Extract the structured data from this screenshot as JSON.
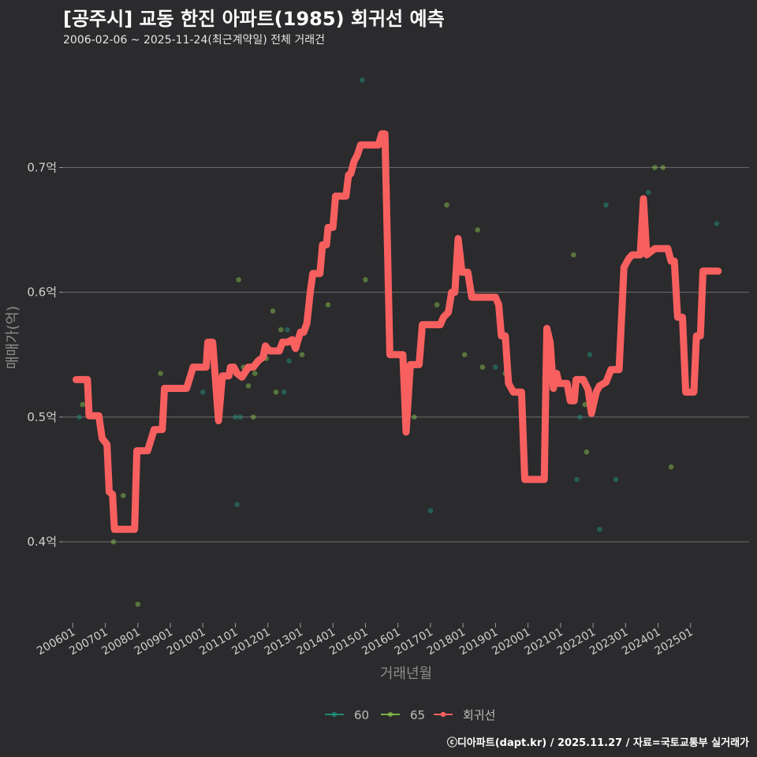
{
  "chart_data": {
    "type": "line",
    "title": "[공주시] 교동 한진 아파트(1985) 회귀선 예측",
    "subtitle": "2006-02-06 ~ 2025-11-24(최근계약일) 전체 거래건",
    "xlabel": "거래년월",
    "ylabel": "매매가(억)",
    "caption": "ⓒ디아파트(dapt.kr) / 2025.11.27 / 자료=국토교통부 실거래가",
    "xlim": [
      2005.7,
      2026.8
    ],
    "ylim": [
      0.335,
      0.79
    ],
    "x_ticks": [
      {
        "value": 2006.0,
        "label": "200601"
      },
      {
        "value": 2007.0,
        "label": "200701"
      },
      {
        "value": 2008.0,
        "label": "200801"
      },
      {
        "value": 2009.0,
        "label": "200901"
      },
      {
        "value": 2010.0,
        "label": "201001"
      },
      {
        "value": 2011.0,
        "label": "201101"
      },
      {
        "value": 2012.0,
        "label": "201201"
      },
      {
        "value": 2013.0,
        "label": "201301"
      },
      {
        "value": 2014.0,
        "label": "201401"
      },
      {
        "value": 2015.0,
        "label": "201501"
      },
      {
        "value": 2016.0,
        "label": "201601"
      },
      {
        "value": 2017.0,
        "label": "201701"
      },
      {
        "value": 2018.0,
        "label": "201801"
      },
      {
        "value": 2019.0,
        "label": "201901"
      },
      {
        "value": 2020.0,
        "label": "202001"
      },
      {
        "value": 2021.0,
        "label": "202101"
      },
      {
        "value": 2022.0,
        "label": "202201"
      },
      {
        "value": 2023.0,
        "label": "202301"
      },
      {
        "value": 2024.0,
        "label": "202401"
      },
      {
        "value": 2025.0,
        "label": "202501"
      }
    ],
    "y_ticks": [
      {
        "value": 0.4,
        "label": "0.4억"
      },
      {
        "value": 0.5,
        "label": "0.5억"
      },
      {
        "value": 0.6,
        "label": "0.6억"
      },
      {
        "value": 0.7,
        "label": "0.7억"
      }
    ],
    "legend": [
      {
        "name": "60",
        "color": "#1f9e89"
      },
      {
        "name": "65",
        "color": "#8fd14f"
      },
      {
        "name": "회귀선",
        "color": "#f8605f"
      }
    ],
    "series": [
      {
        "name": "60",
        "type": "scatter",
        "color": "#1f9e89",
        "points": [
          [
            2006.2,
            0.5
          ],
          [
            2010.0,
            0.52
          ],
          [
            2011.0,
            0.5
          ],
          [
            2011.15,
            0.5
          ],
          [
            2011.05,
            0.43
          ],
          [
            2012.5,
            0.52
          ],
          [
            2012.6,
            0.57
          ],
          [
            2012.65,
            0.545
          ],
          [
            2014.9,
            0.77
          ],
          [
            2017.0,
            0.425
          ],
          [
            2019.0,
            0.54
          ],
          [
            2021.5,
            0.45
          ],
          [
            2021.6,
            0.5
          ],
          [
            2021.9,
            0.55
          ],
          [
            2022.2,
            0.41
          ],
          [
            2022.4,
            0.67
          ],
          [
            2022.7,
            0.45
          ],
          [
            2023.7,
            0.68
          ],
          [
            2025.8,
            0.655
          ]
        ]
      },
      {
        "name": "65",
        "type": "scatter",
        "color": "#8fd14f",
        "points": [
          [
            2006.3,
            0.51
          ],
          [
            2007.25,
            0.4
          ],
          [
            2007.55,
            0.437
          ],
          [
            2008.0,
            0.35
          ],
          [
            2008.7,
            0.535
          ],
          [
            2011.1,
            0.61
          ],
          [
            2011.25,
            0.54
          ],
          [
            2011.4,
            0.525
          ],
          [
            2011.6,
            0.535
          ],
          [
            2011.55,
            0.5
          ],
          [
            2011.95,
            0.547
          ],
          [
            2012.15,
            0.585
          ],
          [
            2012.25,
            0.52
          ],
          [
            2012.4,
            0.57
          ],
          [
            2013.05,
            0.55
          ],
          [
            2013.85,
            0.59
          ],
          [
            2015.0,
            0.61
          ],
          [
            2016.5,
            0.5
          ],
          [
            2017.2,
            0.59
          ],
          [
            2017.5,
            0.67
          ],
          [
            2018.05,
            0.55
          ],
          [
            2018.45,
            0.65
          ],
          [
            2018.6,
            0.54
          ],
          [
            2019.3,
            0.535
          ],
          [
            2021.4,
            0.63
          ],
          [
            2021.75,
            0.51
          ],
          [
            2021.8,
            0.472
          ],
          [
            2023.9,
            0.7
          ],
          [
            2024.15,
            0.7
          ],
          [
            2024.4,
            0.46
          ]
        ]
      },
      {
        "name": "회귀선",
        "type": "line",
        "color": "#f8605f",
        "points": [
          [
            2006.1,
            0.53
          ],
          [
            2006.45,
            0.53
          ],
          [
            2006.5,
            0.501
          ],
          [
            2006.8,
            0.501
          ],
          [
            2006.9,
            0.483
          ],
          [
            2007.05,
            0.478
          ],
          [
            2007.12,
            0.44
          ],
          [
            2007.22,
            0.438
          ],
          [
            2007.28,
            0.41
          ],
          [
            2007.75,
            0.41
          ],
          [
            2007.9,
            0.41
          ],
          [
            2007.97,
            0.473
          ],
          [
            2008.3,
            0.473
          ],
          [
            2008.5,
            0.49
          ],
          [
            2008.75,
            0.49
          ],
          [
            2008.82,
            0.523
          ],
          [
            2009.4,
            0.523
          ],
          [
            2009.5,
            0.523
          ],
          [
            2009.7,
            0.54
          ],
          [
            2010.1,
            0.54
          ],
          [
            2010.15,
            0.56
          ],
          [
            2010.3,
            0.56
          ],
          [
            2010.48,
            0.497
          ],
          [
            2010.6,
            0.533
          ],
          [
            2010.8,
            0.533
          ],
          [
            2010.85,
            0.54
          ],
          [
            2010.95,
            0.54
          ],
          [
            2011.05,
            0.535
          ],
          [
            2011.2,
            0.532
          ],
          [
            2011.4,
            0.54
          ],
          [
            2011.55,
            0.54
          ],
          [
            2011.7,
            0.545
          ],
          [
            2011.85,
            0.548
          ],
          [
            2011.92,
            0.557
          ],
          [
            2012.05,
            0.553
          ],
          [
            2012.35,
            0.553
          ],
          [
            2012.45,
            0.56
          ],
          [
            2012.6,
            0.56
          ],
          [
            2012.75,
            0.562
          ],
          [
            2012.85,
            0.555
          ],
          [
            2013.0,
            0.568
          ],
          [
            2013.1,
            0.568
          ],
          [
            2013.2,
            0.575
          ],
          [
            2013.3,
            0.6
          ],
          [
            2013.38,
            0.615
          ],
          [
            2013.6,
            0.615
          ],
          [
            2013.68,
            0.638
          ],
          [
            2013.8,
            0.638
          ],
          [
            2013.85,
            0.652
          ],
          [
            2014.0,
            0.652
          ],
          [
            2014.08,
            0.677
          ],
          [
            2014.4,
            0.677
          ],
          [
            2014.48,
            0.694
          ],
          [
            2014.55,
            0.695
          ],
          [
            2014.65,
            0.705
          ],
          [
            2014.75,
            0.71
          ],
          [
            2014.85,
            0.718
          ],
          [
            2015.4,
            0.718
          ],
          [
            2015.5,
            0.727
          ],
          [
            2015.6,
            0.727
          ],
          [
            2015.75,
            0.55
          ],
          [
            2016.15,
            0.55
          ],
          [
            2016.25,
            0.488
          ],
          [
            2016.38,
            0.542
          ],
          [
            2016.65,
            0.542
          ],
          [
            2016.75,
            0.574
          ],
          [
            2017.3,
            0.574
          ],
          [
            2017.4,
            0.58
          ],
          [
            2017.55,
            0.584
          ],
          [
            2017.65,
            0.6
          ],
          [
            2017.75,
            0.6
          ],
          [
            2017.85,
            0.643
          ],
          [
            2017.97,
            0.616
          ],
          [
            2018.15,
            0.616
          ],
          [
            2018.27,
            0.596
          ],
          [
            2018.55,
            0.596
          ],
          [
            2019.0,
            0.596
          ],
          [
            2019.1,
            0.59
          ],
          [
            2019.18,
            0.565
          ],
          [
            2019.3,
            0.565
          ],
          [
            2019.4,
            0.527
          ],
          [
            2019.55,
            0.52
          ],
          [
            2019.8,
            0.52
          ],
          [
            2019.9,
            0.45
          ],
          [
            2020.5,
            0.45
          ],
          [
            2020.58,
            0.571
          ],
          [
            2020.68,
            0.56
          ],
          [
            2020.78,
            0.523
          ],
          [
            2020.88,
            0.535
          ],
          [
            2020.95,
            0.527
          ],
          [
            2021.2,
            0.527
          ],
          [
            2021.3,
            0.513
          ],
          [
            2021.42,
            0.513
          ],
          [
            2021.48,
            0.53
          ],
          [
            2021.7,
            0.53
          ],
          [
            2021.85,
            0.522
          ],
          [
            2021.95,
            0.503
          ],
          [
            2022.1,
            0.52
          ],
          [
            2022.2,
            0.525
          ],
          [
            2022.4,
            0.528
          ],
          [
            2022.55,
            0.538
          ],
          [
            2022.8,
            0.538
          ],
          [
            2022.95,
            0.62
          ],
          [
            2023.1,
            0.627
          ],
          [
            2023.2,
            0.63
          ],
          [
            2023.45,
            0.63
          ],
          [
            2023.55,
            0.675
          ],
          [
            2023.65,
            0.63
          ],
          [
            2023.9,
            0.635
          ],
          [
            2024.3,
            0.635
          ],
          [
            2024.4,
            0.625
          ],
          [
            2024.5,
            0.625
          ],
          [
            2024.6,
            0.58
          ],
          [
            2024.75,
            0.58
          ],
          [
            2024.85,
            0.52
          ],
          [
            2025.1,
            0.52
          ],
          [
            2025.18,
            0.565
          ],
          [
            2025.3,
            0.565
          ],
          [
            2025.38,
            0.617
          ],
          [
            2025.85,
            0.617
          ]
        ]
      }
    ]
  }
}
